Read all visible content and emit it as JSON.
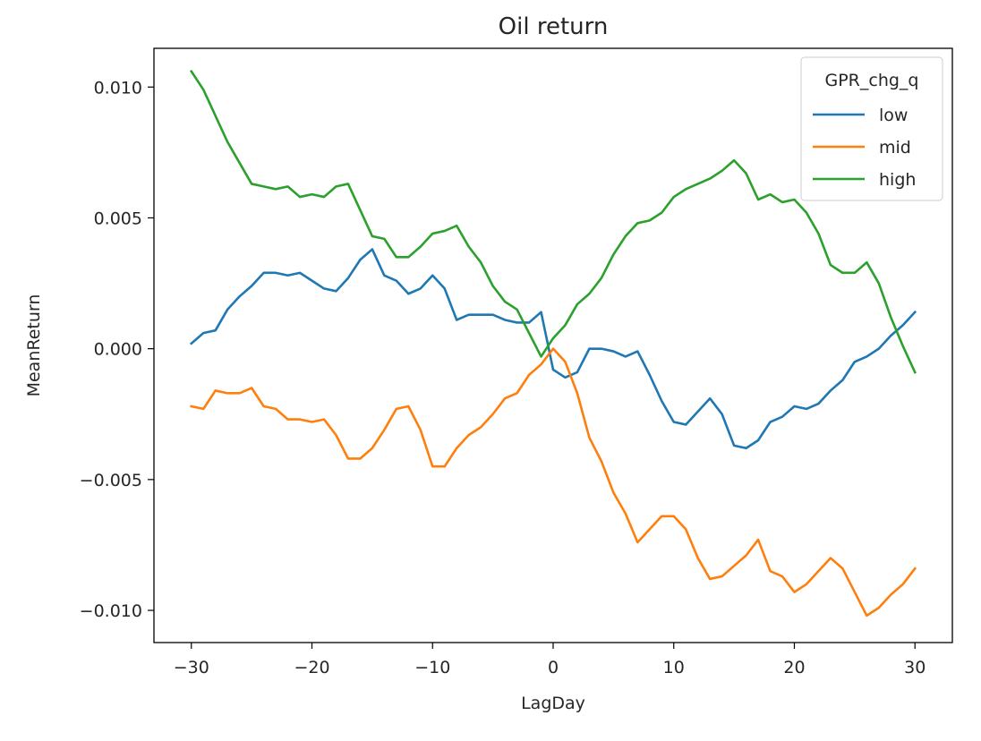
{
  "chart_data": {
    "type": "line",
    "title": "Oil return",
    "xlabel": "LagDay",
    "ylabel": "MeanReturn",
    "xlim": [
      -33.1,
      33.1
    ],
    "ylim": [
      -0.01123,
      0.01148
    ],
    "x_ticks": [
      -30,
      -20,
      -10,
      0,
      10,
      20,
      30
    ],
    "x_tick_labels": [
      "−30",
      "−20",
      "−10",
      "0",
      "10",
      "20",
      "30"
    ],
    "y_ticks": [
      -0.01,
      -0.005,
      0.0,
      0.005,
      0.01
    ],
    "y_tick_labels": [
      "−0.010",
      "−0.005",
      "0.000",
      "0.005",
      "0.010"
    ],
    "grid": false,
    "legend": {
      "title": "GPR_chg_q",
      "position": "top-right"
    },
    "x": [
      -30,
      -29,
      -28,
      -27,
      -26,
      -25,
      -24,
      -23,
      -22,
      -21,
      -20,
      -19,
      -18,
      -17,
      -16,
      -15,
      -14,
      -13,
      -12,
      -11,
      -10,
      -9,
      -8,
      -7,
      -6,
      -5,
      -4,
      -3,
      -2,
      -1,
      0,
      1,
      2,
      3,
      4,
      5,
      6,
      7,
      8,
      9,
      10,
      11,
      12,
      13,
      14,
      15,
      16,
      17,
      18,
      19,
      20,
      21,
      22,
      23,
      24,
      25,
      26,
      27,
      28,
      29,
      30
    ],
    "series": [
      {
        "name": "low",
        "color": "#1f77b4",
        "values": [
          0.0002,
          0.0006,
          0.0007,
          0.0015,
          0.002,
          0.0024,
          0.0029,
          0.0029,
          0.0028,
          0.0029,
          0.0026,
          0.0023,
          0.0022,
          0.0027,
          0.0034,
          0.0038,
          0.0028,
          0.0026,
          0.0021,
          0.0023,
          0.0028,
          0.0023,
          0.0011,
          0.0013,
          0.0013,
          0.0013,
          0.0011,
          0.001,
          0.001,
          0.0014,
          -0.0008,
          -0.0011,
          -0.0009,
          0.0,
          0.0,
          -0.0001,
          -0.0003,
          -0.0001,
          -0.001,
          -0.002,
          -0.0028,
          -0.0029,
          -0.0024,
          -0.0019,
          -0.0025,
          -0.0037,
          -0.0038,
          -0.0035,
          -0.0028,
          -0.0026,
          -0.0022,
          -0.0023,
          -0.0021,
          -0.0016,
          -0.0012,
          -0.0005,
          -0.0003,
          0.0,
          0.0005,
          0.0009,
          0.0014
        ]
      },
      {
        "name": "mid",
        "color": "#ff7f0e",
        "values": [
          -0.0022,
          -0.0023,
          -0.0016,
          -0.0017,
          -0.0017,
          -0.0015,
          -0.0022,
          -0.0023,
          -0.0027,
          -0.0027,
          -0.0028,
          -0.0027,
          -0.0033,
          -0.0042,
          -0.0042,
          -0.0038,
          -0.0031,
          -0.0023,
          -0.0022,
          -0.0031,
          -0.0045,
          -0.0045,
          -0.0038,
          -0.0033,
          -0.003,
          -0.0025,
          -0.0019,
          -0.0017,
          -0.001,
          -0.0006,
          0.0,
          -0.0005,
          -0.0017,
          -0.0034,
          -0.0043,
          -0.0055,
          -0.0063,
          -0.0074,
          -0.0069,
          -0.0064,
          -0.0064,
          -0.0069,
          -0.008,
          -0.0088,
          -0.0087,
          -0.0083,
          -0.0079,
          -0.0073,
          -0.0085,
          -0.0087,
          -0.0093,
          -0.009,
          -0.0085,
          -0.008,
          -0.0084,
          -0.0093,
          -0.0102,
          -0.0099,
          -0.0094,
          -0.009,
          -0.0084
        ]
      },
      {
        "name": "high",
        "color": "#2ca02c",
        "values": [
          0.0106,
          0.0099,
          0.0089,
          0.0079,
          0.0071,
          0.0063,
          0.0062,
          0.0061,
          0.0062,
          0.0058,
          0.0059,
          0.0058,
          0.0062,
          0.0063,
          0.0053,
          0.0043,
          0.0042,
          0.0035,
          0.0035,
          0.0039,
          0.0044,
          0.0045,
          0.0047,
          0.0039,
          0.0033,
          0.0024,
          0.0018,
          0.0015,
          0.0006,
          -0.0003,
          0.0004,
          0.0009,
          0.0017,
          0.0021,
          0.0027,
          0.0036,
          0.0043,
          0.0048,
          0.0049,
          0.0052,
          0.0058,
          0.0061,
          0.0063,
          0.0065,
          0.0068,
          0.0072,
          0.0067,
          0.0057,
          0.0059,
          0.0056,
          0.0057,
          0.0052,
          0.0044,
          0.0032,
          0.0029,
          0.0029,
          0.0033,
          0.0025,
          0.0012,
          0.0001,
          -0.0009
        ]
      }
    ]
  }
}
